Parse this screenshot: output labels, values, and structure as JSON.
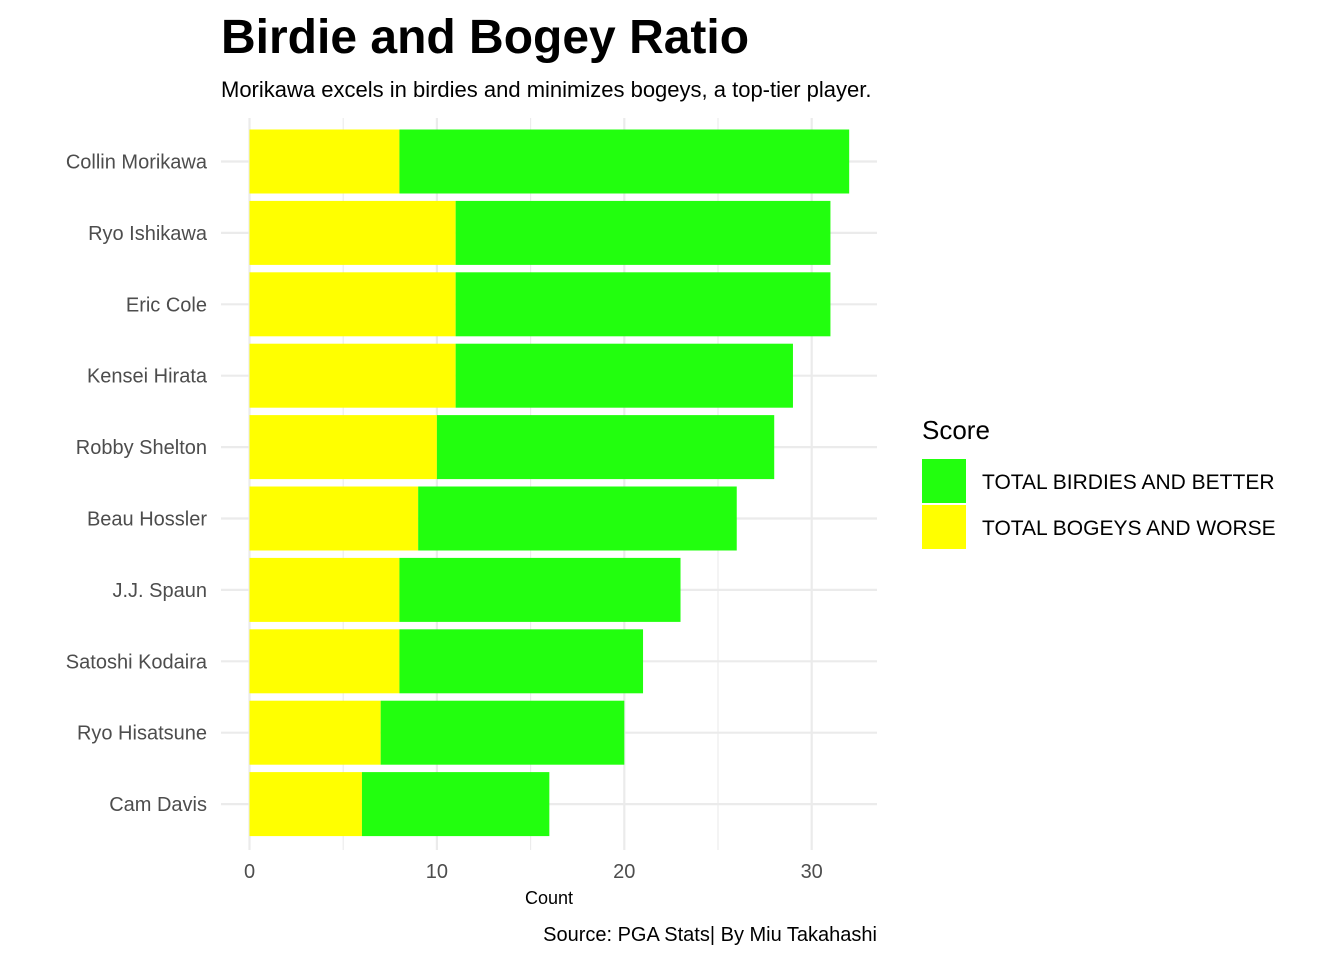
{
  "chart_data": {
    "type": "bar",
    "orientation": "horizontal",
    "stacked": true,
    "title": "Birdie and Bogey Ratio",
    "subtitle": "Morikawa excels in birdies and minimizes bogeys, a top-tier player.",
    "xlabel": "Count",
    "ylabel": "",
    "caption": "Source: PGA Stats| By Miu Takahashi",
    "xlim": [
      0,
      33.6
    ],
    "x_ticks": [
      0,
      10,
      20,
      30
    ],
    "grid": true,
    "categories": [
      "Collin Morikawa",
      "Ryo Ishikawa",
      "Eric Cole",
      "Kensei Hirata",
      "Robby Shelton",
      "Beau Hossler",
      "J.J. Spaun",
      "Satoshi Kodaira",
      "Ryo Hisatsune",
      "Cam Davis"
    ],
    "legend": {
      "title": "Score",
      "position": "right"
    },
    "series": [
      {
        "name": "TOTAL BOGEYS AND WORSE",
        "color": "#ffff00",
        "values": [
          8,
          11,
          11,
          11,
          10,
          9,
          8,
          8,
          7,
          6
        ]
      },
      {
        "name": "TOTAL BIRDIES AND BETTER",
        "color": "#22ff0e",
        "values": [
          24,
          20,
          20,
          18,
          18,
          17,
          15,
          13,
          13,
          10
        ]
      }
    ],
    "legend_order": [
      "TOTAL BIRDIES AND BETTER",
      "TOTAL BOGEYS AND WORSE"
    ]
  }
}
